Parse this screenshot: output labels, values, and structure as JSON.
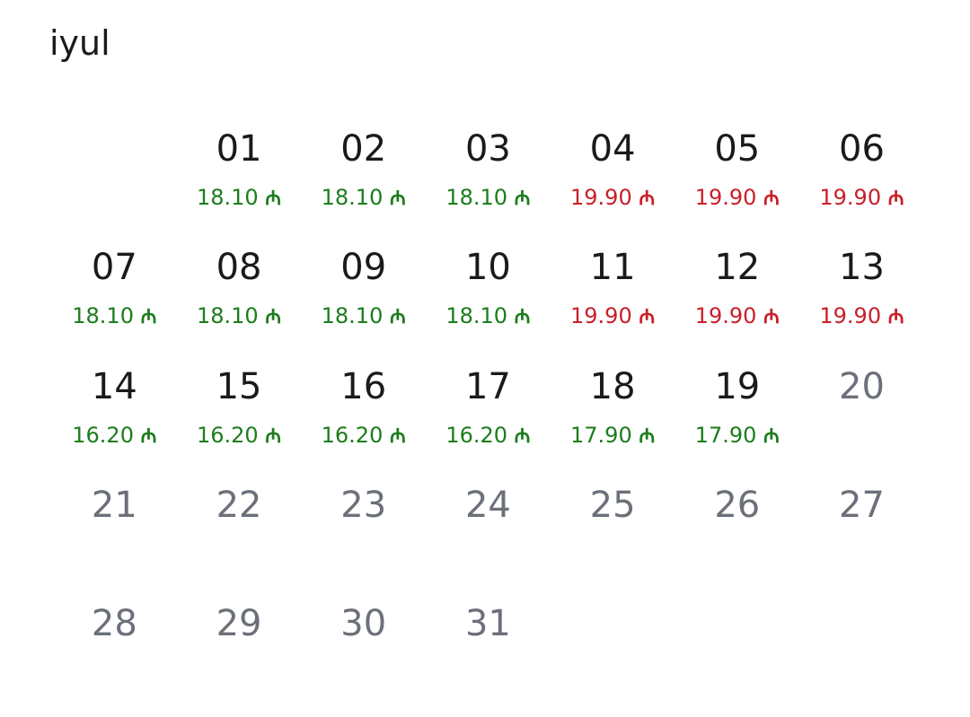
{
  "title": "iyul",
  "currency_symbol": "₼",
  "colors": {
    "cheap": "#1c7d1c",
    "expensive": "#c8202a",
    "available": "#1a1a1a",
    "unavailable": "#6b7079"
  },
  "weeks": [
    [
      null,
      {
        "day": "01",
        "price": "18.10",
        "level": "cheap"
      },
      {
        "day": "02",
        "price": "18.10",
        "level": "cheap"
      },
      {
        "day": "03",
        "price": "18.10",
        "level": "cheap"
      },
      {
        "day": "04",
        "price": "19.90",
        "level": "expensive"
      },
      {
        "day": "05",
        "price": "19.90",
        "level": "expensive"
      },
      {
        "day": "06",
        "price": "19.90",
        "level": "expensive"
      }
    ],
    [
      {
        "day": "07",
        "price": "18.10",
        "level": "cheap"
      },
      {
        "day": "08",
        "price": "18.10",
        "level": "cheap"
      },
      {
        "day": "09",
        "price": "18.10",
        "level": "cheap"
      },
      {
        "day": "10",
        "price": "18.10",
        "level": "cheap"
      },
      {
        "day": "11",
        "price": "19.90",
        "level": "expensive"
      },
      {
        "day": "12",
        "price": "19.90",
        "level": "expensive"
      },
      {
        "day": "13",
        "price": "19.90",
        "level": "expensive"
      }
    ],
    [
      {
        "day": "14",
        "price": "16.20",
        "level": "cheap"
      },
      {
        "day": "15",
        "price": "16.20",
        "level": "cheap"
      },
      {
        "day": "16",
        "price": "16.20",
        "level": "cheap"
      },
      {
        "day": "17",
        "price": "16.20",
        "level": "cheap"
      },
      {
        "day": "18",
        "price": "17.90",
        "level": "cheap"
      },
      {
        "day": "19",
        "price": "17.90",
        "level": "cheap"
      },
      {
        "day": "20"
      }
    ],
    [
      {
        "day": "21"
      },
      {
        "day": "22"
      },
      {
        "day": "23"
      },
      {
        "day": "24"
      },
      {
        "day": "25"
      },
      {
        "day": "26"
      },
      {
        "day": "27"
      }
    ],
    [
      {
        "day": "28"
      },
      {
        "day": "29"
      },
      {
        "day": "30"
      },
      {
        "day": "31"
      }
    ]
  ]
}
